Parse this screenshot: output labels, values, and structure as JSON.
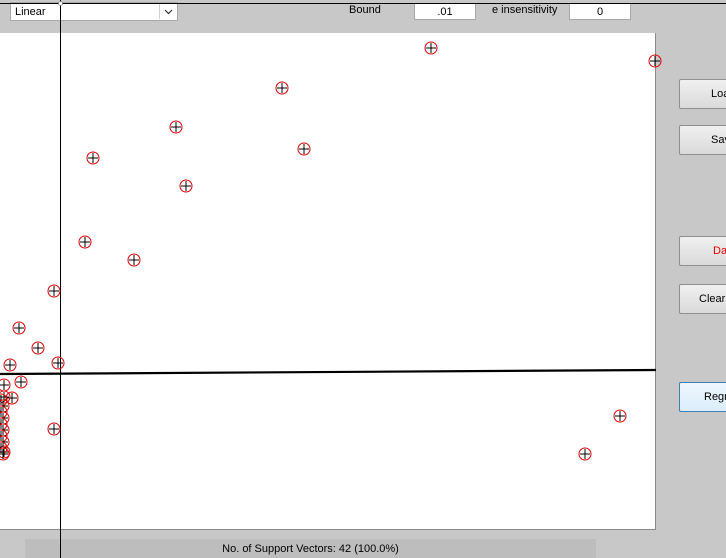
{
  "kernel_select": {
    "value": "Linear"
  },
  "params": {
    "bound_label": "Bound",
    "bound_value": ".01",
    "epsilon_label": "e insensitivity",
    "epsilon_value": "0"
  },
  "buttons": {
    "load": "Load",
    "save": "Save",
    "data": "Data",
    "clear": "Clear",
    "regress": "Regress"
  },
  "status": {
    "text": "No. of Support Vectors: 42 (100.0%)"
  },
  "colors": {
    "marker_ring": "#e00000",
    "marker_cross": "#000000",
    "regression_line": "#000000"
  }
}
